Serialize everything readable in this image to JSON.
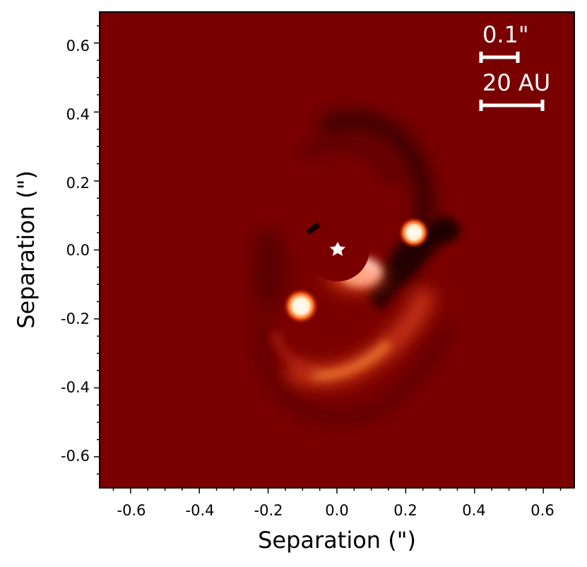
{
  "figure": {
    "xlabel": "Separation (\")",
    "ylabel": "Separation (\")",
    "x_ticks": [
      "-0.6",
      "-0.4",
      "-0.2",
      "0.0",
      "0.2",
      "0.4",
      "0.6"
    ],
    "y_ticks": [
      "0.6",
      "0.4",
      "0.2",
      "0.0",
      "-0.2",
      "-0.4",
      "-0.6"
    ],
    "xlim": [
      -0.69,
      0.69
    ],
    "ylim": [
      -0.69,
      0.69
    ],
    "scalebars": [
      {
        "label": "0.1\"",
        "length_arcsec": 0.1
      },
      {
        "label": "20 AU",
        "length_arcsec": 0.18
      }
    ],
    "colors": {
      "background": "#7a0000",
      "bright": "#ffffff",
      "mid": "#e0401a",
      "dark": "#1f0000"
    },
    "star_marker": "star-icon"
  }
}
